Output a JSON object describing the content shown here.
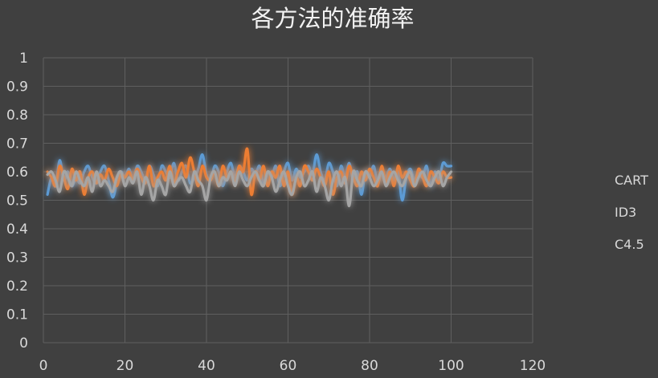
{
  "chart_data": {
    "type": "line",
    "title": "各方法的准确率",
    "xlim": [
      0,
      120
    ],
    "ylim": [
      0,
      1
    ],
    "x_ticks": [
      0,
      20,
      40,
      60,
      80,
      100,
      120
    ],
    "y_ticks": [
      0,
      0.1,
      0.2,
      0.3,
      0.4,
      0.5,
      0.6,
      0.7,
      0.8,
      0.9,
      1
    ],
    "y_tick_labels": [
      "0",
      "0.1",
      "0.2",
      "0.3",
      "0.4",
      "0.5",
      "0.6",
      "0.7",
      "0.8",
      "0.9",
      "1"
    ],
    "grid": true,
    "legend_position": "right",
    "x": [
      1,
      2,
      3,
      4,
      5,
      6,
      7,
      8,
      9,
      10,
      11,
      12,
      13,
      14,
      15,
      16,
      17,
      18,
      19,
      20,
      21,
      22,
      23,
      24,
      25,
      26,
      27,
      28,
      29,
      30,
      31,
      32,
      33,
      34,
      35,
      36,
      37,
      38,
      39,
      40,
      41,
      42,
      43,
      44,
      45,
      46,
      47,
      48,
      49,
      50,
      51,
      52,
      53,
      54,
      55,
      56,
      57,
      58,
      59,
      60,
      61,
      62,
      63,
      64,
      65,
      66,
      67,
      68,
      69,
      70,
      71,
      72,
      73,
      74,
      75,
      76,
      77,
      78,
      79,
      80,
      81,
      82,
      83,
      84,
      85,
      86,
      87,
      88,
      89,
      90,
      91,
      92,
      93,
      94,
      95,
      96,
      97,
      98,
      99,
      100
    ],
    "series": [
      {
        "name": "CART",
        "color": "#5b9bd5",
        "values": [
          0.52,
          0.58,
          0.55,
          0.64,
          0.57,
          0.6,
          0.55,
          0.58,
          0.56,
          0.6,
          0.62,
          0.58,
          0.56,
          0.6,
          0.62,
          0.57,
          0.51,
          0.56,
          0.6,
          0.58,
          0.61,
          0.57,
          0.62,
          0.6,
          0.57,
          0.62,
          0.59,
          0.55,
          0.62,
          0.6,
          0.58,
          0.63,
          0.57,
          0.6,
          0.62,
          0.56,
          0.58,
          0.61,
          0.66,
          0.59,
          0.57,
          0.62,
          0.6,
          0.55,
          0.6,
          0.63,
          0.58,
          0.62,
          0.6,
          0.57,
          0.61,
          0.59,
          0.62,
          0.56,
          0.6,
          0.58,
          0.62,
          0.55,
          0.6,
          0.63,
          0.57,
          0.61,
          0.58,
          0.6,
          0.62,
          0.59,
          0.66,
          0.6,
          0.57,
          0.63,
          0.6,
          0.55,
          0.62,
          0.58,
          0.63,
          0.57,
          0.6,
          0.52,
          0.6,
          0.58,
          0.62,
          0.56,
          0.6,
          0.58,
          0.61,
          0.57,
          0.6,
          0.5,
          0.58,
          0.61,
          0.57,
          0.6,
          0.58,
          0.62,
          0.55,
          0.6,
          0.57,
          0.63,
          0.62,
          0.62
        ]
      },
      {
        "name": "ID3",
        "color": "#ed7d31",
        "values": [
          0.6,
          0.58,
          0.55,
          0.62,
          0.58,
          0.54,
          0.61,
          0.57,
          0.6,
          0.52,
          0.58,
          0.6,
          0.56,
          0.59,
          0.57,
          0.61,
          0.58,
          0.55,
          0.59,
          0.58,
          0.6,
          0.57,
          0.61,
          0.58,
          0.56,
          0.62,
          0.55,
          0.58,
          0.6,
          0.57,
          0.62,
          0.56,
          0.6,
          0.63,
          0.58,
          0.65,
          0.6,
          0.55,
          0.62,
          0.58,
          0.57,
          0.6,
          0.55,
          0.62,
          0.58,
          0.6,
          0.56,
          0.62,
          0.6,
          0.68,
          0.52,
          0.6,
          0.57,
          0.62,
          0.55,
          0.6,
          0.58,
          0.62,
          0.55,
          0.6,
          0.52,
          0.58,
          0.55,
          0.62,
          0.6,
          0.57,
          0.61,
          0.58,
          0.55,
          0.6,
          0.52,
          0.58,
          0.6,
          0.56,
          0.62,
          0.58,
          0.55,
          0.6,
          0.57,
          0.61,
          0.58,
          0.55,
          0.62,
          0.56,
          0.6,
          0.55,
          0.62,
          0.58,
          0.6,
          0.57,
          0.55,
          0.61,
          0.58,
          0.55,
          0.6,
          0.58,
          0.56,
          0.6,
          0.58,
          0.58
        ]
      },
      {
        "name": "C4.5",
        "color": "#a5a5a5",
        "values": [
          0.59,
          0.6,
          0.57,
          0.53,
          0.6,
          0.58,
          0.55,
          0.6,
          0.57,
          0.55,
          0.58,
          0.53,
          0.6,
          0.55,
          0.57,
          0.55,
          0.53,
          0.58,
          0.6,
          0.55,
          0.58,
          0.56,
          0.6,
          0.52,
          0.58,
          0.55,
          0.5,
          0.57,
          0.55,
          0.52,
          0.6,
          0.55,
          0.57,
          0.58,
          0.55,
          0.53,
          0.6,
          0.57,
          0.55,
          0.5,
          0.58,
          0.6,
          0.55,
          0.58,
          0.57,
          0.6,
          0.55,
          0.6,
          0.57,
          0.55,
          0.58,
          0.6,
          0.57,
          0.55,
          0.6,
          0.58,
          0.53,
          0.57,
          0.6,
          0.55,
          0.52,
          0.58,
          0.6,
          0.55,
          0.57,
          0.6,
          0.53,
          0.58,
          0.55,
          0.5,
          0.57,
          0.6,
          0.55,
          0.58,
          0.48,
          0.6,
          0.57,
          0.55,
          0.6,
          0.58,
          0.55,
          0.57,
          0.6,
          0.55,
          0.58,
          0.6,
          0.57,
          0.55,
          0.58,
          0.6,
          0.55,
          0.58,
          0.6,
          0.57,
          0.55,
          0.58,
          0.6,
          0.55,
          0.58,
          0.6
        ]
      }
    ]
  }
}
